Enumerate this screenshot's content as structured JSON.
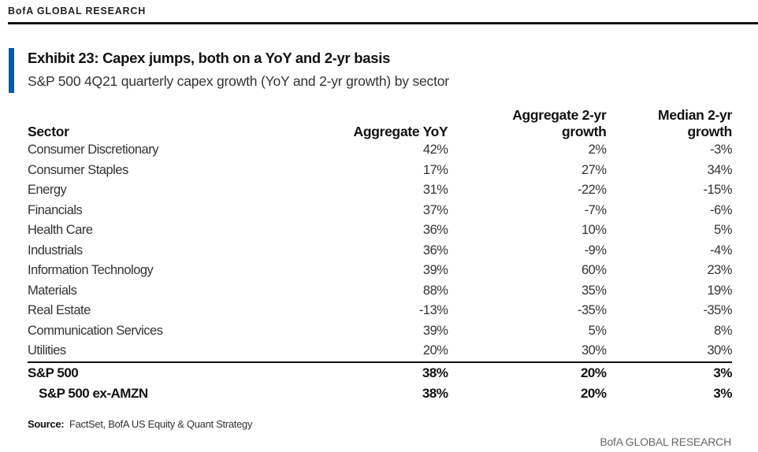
{
  "header": {
    "brand": "BofA GLOBAL RESEARCH"
  },
  "exhibit": {
    "title": "Exhibit 23: Capex jumps, both on a YoY and 2-yr basis",
    "subtitle": "S&P 500 4Q21 quarterly capex growth (YoY and 2-yr growth) by sector",
    "accent_color": "#0057b8"
  },
  "table": {
    "columns": [
      "Sector",
      "Aggregate YoY",
      "Aggregate 2-yr growth",
      "Median 2-yr growth"
    ],
    "column_lines": [
      [
        "Sector"
      ],
      [
        "Aggregate YoY"
      ],
      [
        "Aggregate 2-yr",
        "growth"
      ],
      [
        "Median 2-yr",
        "growth"
      ]
    ],
    "rows": [
      {
        "sector": "Consumer Discretionary",
        "agg_yoy": "42%",
        "agg_2yr": "2%",
        "med_2yr": "-3%"
      },
      {
        "sector": "Consumer Staples",
        "agg_yoy": "17%",
        "agg_2yr": "27%",
        "med_2yr": "34%"
      },
      {
        "sector": "Energy",
        "agg_yoy": "31%",
        "agg_2yr": "-22%",
        "med_2yr": "-15%"
      },
      {
        "sector": "Financials",
        "agg_yoy": "37%",
        "agg_2yr": "-7%",
        "med_2yr": "-6%"
      },
      {
        "sector": "Health Care",
        "agg_yoy": "36%",
        "agg_2yr": "10%",
        "med_2yr": "5%"
      },
      {
        "sector": "Industrials",
        "agg_yoy": "36%",
        "agg_2yr": "-9%",
        "med_2yr": "-4%"
      },
      {
        "sector": "Information Technology",
        "agg_yoy": "39%",
        "agg_2yr": "60%",
        "med_2yr": "23%"
      },
      {
        "sector": "Materials",
        "agg_yoy": "88%",
        "agg_2yr": "35%",
        "med_2yr": "19%"
      },
      {
        "sector": "Real Estate",
        "agg_yoy": "-13%",
        "agg_2yr": "-35%",
        "med_2yr": "-35%"
      },
      {
        "sector": "Communication Services",
        "agg_yoy": "39%",
        "agg_2yr": "5%",
        "med_2yr": "8%"
      },
      {
        "sector": "Utilities",
        "agg_yoy": "20%",
        "agg_2yr": "30%",
        "med_2yr": "30%"
      }
    ],
    "totals": [
      {
        "sector": "S&P 500",
        "agg_yoy": "38%",
        "agg_2yr": "20%",
        "med_2yr": "3%"
      },
      {
        "sector": "S&P 500 ex-AMZN",
        "agg_yoy": "38%",
        "agg_2yr": "20%",
        "med_2yr": "3%"
      }
    ]
  },
  "footer": {
    "source_label": "Source:",
    "source_text": "FactSet, BofA US Equity & Quant Strategy",
    "brand": "BofA GLOBAL RESEARCH"
  }
}
